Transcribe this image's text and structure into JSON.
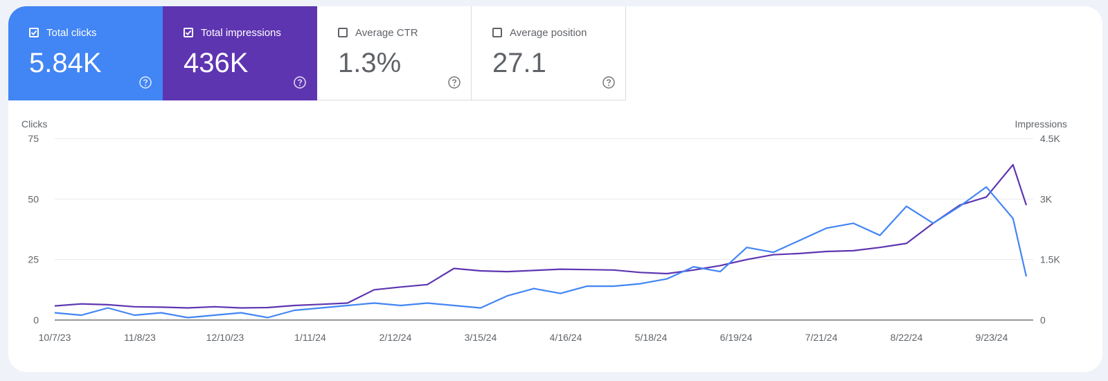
{
  "metrics": [
    {
      "label": "Total clicks",
      "value": "5.84K",
      "checked": true,
      "color": "#4285f4",
      "icon": "help-circle-icon"
    },
    {
      "label": "Total impressions",
      "value": "436K",
      "checked": true,
      "color": "#5e35b1",
      "icon": "help-circle-icon"
    },
    {
      "label": "Average CTR",
      "value": "1.3%",
      "checked": false,
      "color": "#ffffff",
      "icon": "help-circle-icon"
    },
    {
      "label": "Average position",
      "value": "27.1",
      "checked": false,
      "color": "#ffffff",
      "icon": "help-circle-icon"
    }
  ],
  "chart_data": {
    "type": "line",
    "y_left_label": "Clicks",
    "y_right_label": "Impressions",
    "y_left_ticks": [
      "0",
      "25",
      "50",
      "75"
    ],
    "y_right_ticks": [
      "0",
      "1.5K",
      "3K",
      "4.5K"
    ],
    "ylim_left": [
      0,
      75
    ],
    "ylim_right": [
      0,
      4500
    ],
    "grid": true,
    "x_tick_labels": [
      "10/7/23",
      "11/8/23",
      "12/10/23",
      "1/11/24",
      "2/12/24",
      "3/15/24",
      "4/16/24",
      "5/18/24",
      "6/19/24",
      "7/21/24",
      "8/22/24",
      "9/23/24"
    ],
    "series": [
      {
        "name": "Total clicks",
        "axis": "left",
        "color": "#4285f4",
        "x": [
          "10/7/23",
          "10/17/23",
          "10/27/23",
          "11/6/23",
          "11/16/23",
          "11/26/23",
          "12/6/23",
          "12/16/23",
          "12/26/23",
          "1/5/24",
          "1/15/24",
          "1/25/24",
          "2/4/24",
          "2/14/24",
          "2/24/24",
          "3/5/24",
          "3/15/24",
          "3/25/24",
          "4/4/24",
          "4/14/24",
          "4/24/24",
          "5/4/24",
          "5/14/24",
          "5/24/24",
          "6/3/24",
          "6/13/24",
          "6/23/24",
          "7/3/24",
          "7/13/24",
          "7/23/24",
          "8/2/24",
          "8/12/24",
          "8/22/24",
          "9/1/24",
          "9/11/24",
          "9/21/24",
          "10/1/24",
          "10/6/24"
        ],
        "values": [
          3,
          2,
          5,
          2,
          3,
          1,
          2,
          3,
          1,
          4,
          5,
          6,
          7,
          6,
          7,
          6,
          5,
          10,
          13,
          11,
          14,
          14,
          15,
          17,
          22,
          20,
          30,
          28,
          33,
          38,
          40,
          35,
          47,
          40,
          47,
          55,
          42,
          18
        ]
      },
      {
        "name": "Total impressions",
        "axis": "right",
        "color": "#5e35b1",
        "x": [
          "10/7/23",
          "10/17/23",
          "10/27/23",
          "11/6/23",
          "11/16/23",
          "11/26/23",
          "12/6/23",
          "12/16/23",
          "12/26/23",
          "1/5/24",
          "1/15/24",
          "1/25/24",
          "2/4/24",
          "2/14/24",
          "2/24/24",
          "3/5/24",
          "3/15/24",
          "3/25/24",
          "4/4/24",
          "4/14/24",
          "4/24/24",
          "5/4/24",
          "5/14/24",
          "5/24/24",
          "6/3/24",
          "6/13/24",
          "6/23/24",
          "7/3/24",
          "7/13/24",
          "7/23/24",
          "8/2/24",
          "8/12/24",
          "8/22/24",
          "9/1/24",
          "9/11/24",
          "9/21/24",
          "10/1/24",
          "10/6/24"
        ],
        "values": [
          350,
          400,
          380,
          330,
          320,
          300,
          330,
          300,
          310,
          360,
          390,
          420,
          750,
          820,
          880,
          1280,
          1220,
          1200,
          1230,
          1260,
          1250,
          1240,
          1180,
          1150,
          1240,
          1350,
          1500,
          1620,
          1650,
          1700,
          1720,
          1800,
          1900,
          2400,
          2850,
          3050,
          3850,
          2850
        ]
      }
    ]
  }
}
